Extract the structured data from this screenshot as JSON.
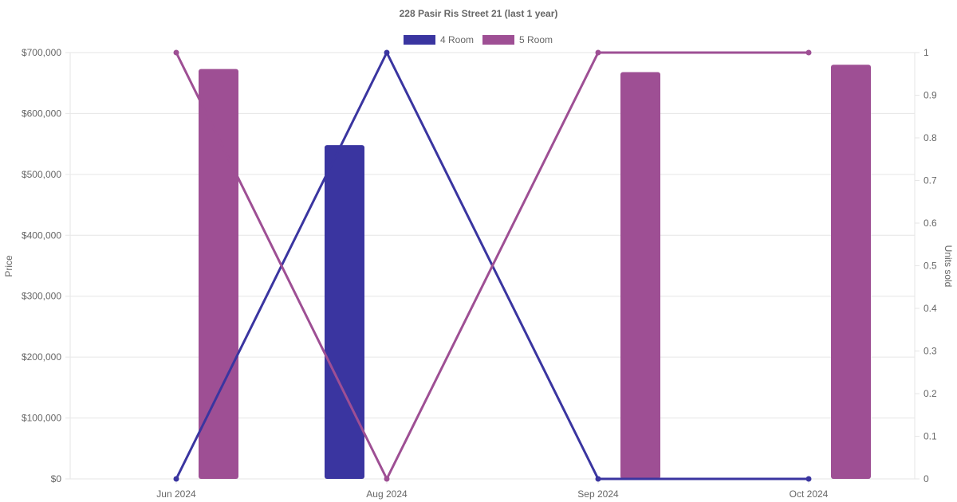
{
  "chart_data": {
    "type": "bar+line",
    "title": "228 Pasir Ris Street 21 (last 1 year)",
    "categories": [
      "Jun 2024",
      "Aug 2024",
      "Sep 2024",
      "Oct 2024"
    ],
    "y_left": {
      "label": "Price",
      "range": [
        0,
        700000
      ],
      "ticks": [
        "$0",
        "$100,000",
        "$200,000",
        "$300,000",
        "$400,000",
        "$500,000",
        "$600,000",
        "$700,000"
      ]
    },
    "y_right": {
      "label": "Units sold",
      "range": [
        0,
        1
      ],
      "ticks": [
        "0",
        "0.1",
        "0.2",
        "0.3",
        "0.4",
        "0.5",
        "0.6",
        "0.7",
        "0.8",
        "0.9",
        "1"
      ]
    },
    "grid": true,
    "legend_position": "top-center",
    "series": [
      {
        "name": "4 Room",
        "color": "#3a35a0",
        "price": [
          null,
          548000,
          null,
          null
        ],
        "units": [
          0,
          1,
          0,
          0
        ]
      },
      {
        "name": "5 Room",
        "color": "#9e4f94",
        "price": [
          673000,
          null,
          668000,
          680000
        ],
        "units": [
          1,
          0,
          1,
          1
        ]
      }
    ]
  }
}
